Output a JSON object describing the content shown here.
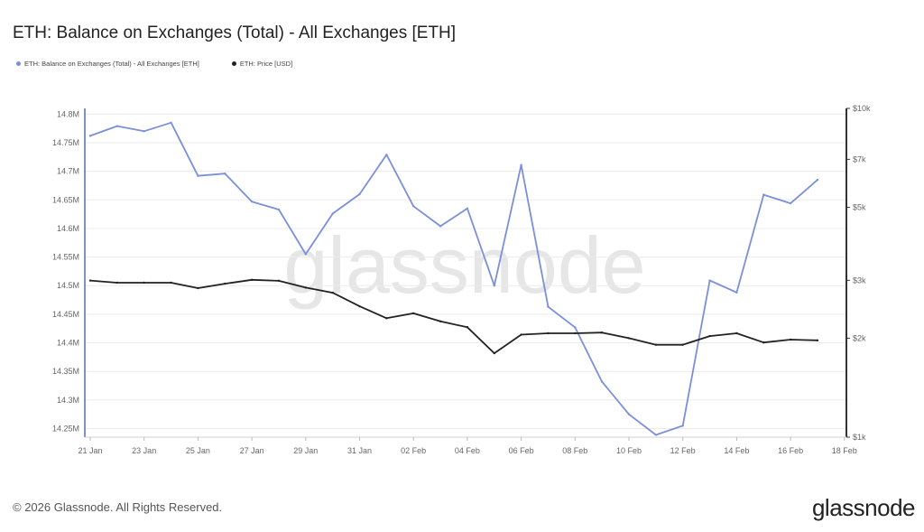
{
  "title": "ETH: Balance on Exchanges (Total) - All Exchanges [ETH]",
  "footer": {
    "copyright": "© 2026 Glassnode. All Rights Reserved.",
    "brand": "glassnode"
  },
  "watermark": "glassnode",
  "colors": {
    "balance": "#7b8fdb",
    "price": "#222222",
    "grid": "#ececec",
    "axis": "#333333"
  },
  "chart_data": {
    "type": "line",
    "title": "ETH: Balance on Exchanges (Total) - All Exchanges [ETH]",
    "legend_position": "top-left",
    "grid": true,
    "x_ticks": [
      "21 Jan",
      "23 Jan",
      "25 Jan",
      "27 Jan",
      "29 Jan",
      "31 Jan",
      "02 Feb",
      "04 Feb",
      "06 Feb",
      "08 Feb",
      "10 Feb",
      "12 Feb",
      "14 Feb",
      "16 Feb",
      "18 Feb"
    ],
    "x": [
      "21 Jan",
      "22 Jan",
      "23 Jan",
      "24 Jan",
      "25 Jan",
      "26 Jan",
      "27 Jan",
      "28 Jan",
      "29 Jan",
      "30 Jan",
      "31 Jan",
      "01 Feb",
      "02 Feb",
      "03 Feb",
      "04 Feb",
      "05 Feb",
      "06 Feb",
      "07 Feb",
      "08 Feb",
      "09 Feb",
      "10 Feb",
      "11 Feb",
      "12 Feb",
      "13 Feb",
      "14 Feb",
      "15 Feb",
      "16 Feb",
      "17 Feb"
    ],
    "y_left": {
      "ticks": [
        "14.25M",
        "14.3M",
        "14.35M",
        "14.4M",
        "14.45M",
        "14.5M",
        "14.55M",
        "14.6M",
        "14.65M",
        "14.7M",
        "14.75M",
        "14.8M"
      ],
      "range": [
        14.235,
        14.81
      ]
    },
    "y_right": {
      "scale": "log",
      "ticks": [
        "$1k",
        "$2k",
        "$3k",
        "$5k",
        "$7k",
        "$10k"
      ],
      "tick_values": [
        1000,
        2000,
        3000,
        5000,
        7000,
        10000
      ],
      "range": [
        1000,
        10000
      ]
    },
    "series": [
      {
        "name": "ETH: Balance on Exchanges (Total) - All Exchanges [ETH]",
        "axis": "left",
        "values": [
          14.762,
          14.779,
          14.77,
          14.785,
          14.692,
          14.696,
          14.647,
          14.633,
          14.555,
          14.626,
          14.66,
          14.729,
          14.639,
          14.604,
          14.635,
          14.5,
          14.711,
          14.463,
          14.427,
          14.332,
          14.275,
          14.239,
          14.255,
          14.509,
          14.488,
          14.659,
          14.644,
          14.685
        ]
      },
      {
        "name": "ETH: Price [USD]",
        "axis": "right",
        "values": [
          2995,
          2950,
          2950,
          2950,
          2840,
          2930,
          3010,
          2990,
          2850,
          2750,
          2500,
          2300,
          2380,
          2250,
          2160,
          1800,
          2050,
          2070,
          2070,
          2080,
          2000,
          1910,
          1910,
          2030,
          2070,
          1940,
          1980,
          1970
        ]
      }
    ]
  }
}
